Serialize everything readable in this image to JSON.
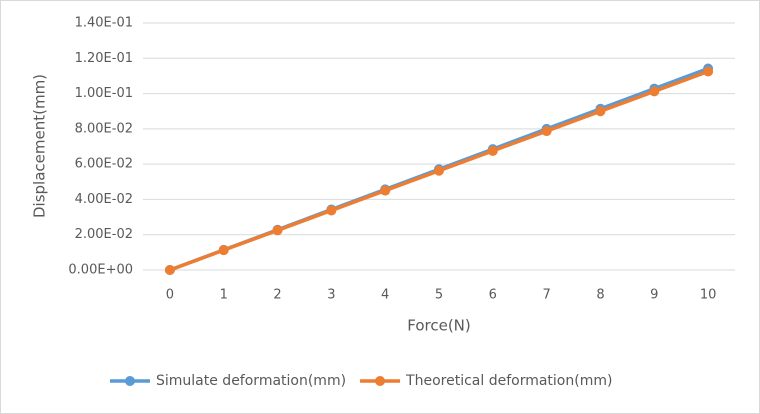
{
  "chart_data": {
    "type": "line",
    "xlabel": "Force(N)",
    "ylabel": "Displacement(mm)",
    "categories": [
      "0",
      "1",
      "2",
      "3",
      "4",
      "5",
      "6",
      "7",
      "8",
      "9",
      "10"
    ],
    "series": [
      {
        "name": "Simulate deformation(mm)",
        "color": "#5b9bd5",
        "values": [
          0,
          0.0114,
          0.0228,
          0.0343,
          0.0457,
          0.0571,
          0.0685,
          0.08,
          0.0914,
          0.1028,
          0.1142
        ]
      },
      {
        "name": "Theoretical deformation(mm)",
        "color": "#ed7d31",
        "values": [
          0,
          0.01125,
          0.0225,
          0.03375,
          0.045,
          0.05625,
          0.0675,
          0.07875,
          0.09,
          0.10125,
          0.1125
        ]
      }
    ],
    "ylim": [
      0,
      0.14
    ],
    "yticks": [
      {
        "value": 0,
        "label": "0.00E+00"
      },
      {
        "value": 0.02,
        "label": "2.00E-02"
      },
      {
        "value": 0.04,
        "label": "4.00E-02"
      },
      {
        "value": 0.06,
        "label": "6.00E-02"
      },
      {
        "value": 0.08,
        "label": "8.00E-02"
      },
      {
        "value": 0.1,
        "label": "1.00E-01"
      },
      {
        "value": 0.12,
        "label": "1.20E-01"
      },
      {
        "value": 0.14,
        "label": "1.40E-01"
      }
    ],
    "grid": true,
    "legend": "bottom"
  }
}
